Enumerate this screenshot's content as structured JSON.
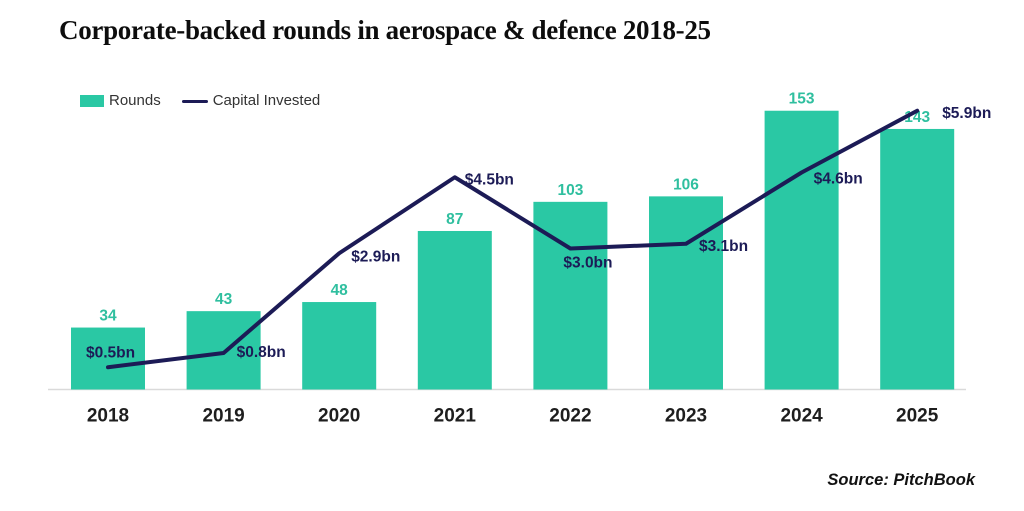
{
  "title": "Corporate-backed rounds in aerospace & defence 2018-25",
  "legend": {
    "rounds_label": "Rounds",
    "capital_label": "Capital Invested"
  },
  "source": "Source: PitchBook",
  "colors": {
    "bar": "#2AC8A4",
    "bar_label": "#2FBF9F",
    "line": "#1C1B56",
    "xlabel": "#1E1E1E",
    "axis": "#DADADA"
  },
  "chart_data": {
    "type": "combo",
    "title": "Corporate-backed rounds in aerospace & defence 2018-25",
    "categories": [
      "2018",
      "2019",
      "2020",
      "2021",
      "2022",
      "2023",
      "2024",
      "2025"
    ],
    "series": [
      {
        "name": "Rounds",
        "type": "bar",
        "values": [
          34,
          43,
          48,
          87,
          103,
          106,
          153,
          143
        ],
        "labels": [
          "34",
          "43",
          "48",
          "87",
          "103",
          "106",
          "153",
          "143"
        ]
      },
      {
        "name": "Capital Invested",
        "type": "line",
        "unit": "$bn",
        "values": [
          0.5,
          0.8,
          2.9,
          4.5,
          3.0,
          3.1,
          4.6,
          5.9
        ],
        "labels": [
          "$0.5bn",
          "$0.8bn",
          "$2.9bn",
          "$4.5bn",
          "$3.0bn",
          "$3.1bn",
          "$4.6bn",
          "$5.9bn"
        ]
      }
    ],
    "xlabel": "",
    "ylabel": "",
    "bar_ylim": [
      0,
      160
    ],
    "line_ylim": [
      0,
      6.2
    ],
    "grid": false,
    "y_axis_visible": false,
    "legend_position": "top-left",
    "source": "Source: PitchBook"
  }
}
